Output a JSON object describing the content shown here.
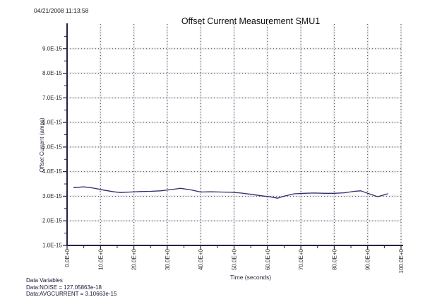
{
  "header": {
    "timestamp": "04/21/2008 11:13:58"
  },
  "chart_data": {
    "type": "line",
    "title": "Offset Current Measurement SMU1",
    "xlabel": "Time (seconds)",
    "ylabel": "Offset Current (amps)",
    "xlim": [
      0,
      100
    ],
    "ylim_e15": [
      1,
      10
    ],
    "grid": true,
    "x_tick_values": [
      0,
      10,
      20,
      30,
      40,
      50,
      60,
      70,
      80,
      90,
      100
    ],
    "x_tick_labels": [
      "0.0E+0",
      "10.0E+0",
      "20.0E+0",
      "30.0E+0",
      "40.0E+0",
      "50.0E+0",
      "60.0E+0",
      "70.0E+0",
      "80.0E+0",
      "90.0E+0",
      "100.0E+0"
    ],
    "y_tick_values": [
      1,
      2,
      3,
      4,
      5,
      6,
      7,
      8,
      9
    ],
    "y_tick_labels": [
      "1.0E-15",
      "2.0E-15",
      "3.0E-15",
      "4.0E-15",
      "5.0E-15",
      "6.0E-15",
      "7.0E-15",
      "8.0E-15",
      "9.0E-15"
    ],
    "y_scale_note": "values are amps, axis labels in units of 1E-15",
    "line_color": "#2c2c6e",
    "series": [
      {
        "name": "Offset Current SMU1",
        "x": [
          2,
          5,
          8,
          11,
          14,
          16,
          19,
          22,
          25,
          28,
          31,
          34,
          37,
          40,
          43,
          46,
          49,
          52,
          55,
          58,
          61,
          63,
          65,
          68,
          71,
          74,
          77,
          80,
          83,
          86,
          88,
          90,
          93,
          96
        ],
        "y_e15": [
          3.35,
          3.38,
          3.33,
          3.25,
          3.18,
          3.15,
          3.17,
          3.19,
          3.2,
          3.22,
          3.27,
          3.32,
          3.26,
          3.17,
          3.18,
          3.17,
          3.16,
          3.13,
          3.08,
          3.02,
          2.97,
          2.92,
          3.0,
          3.1,
          3.12,
          3.13,
          3.12,
          3.12,
          3.14,
          3.2,
          3.22,
          3.12,
          2.98,
          3.1
        ]
      }
    ]
  },
  "annotations": {
    "data_variables_header": "Data Variables",
    "noise_line": "Data:NOISE = 127.05863e-18",
    "avgcurrent_line": "Data:AVGCURRENT = 3.10663e-15"
  },
  "colors": {
    "accent_line": "#2c2c6e",
    "axis": "#23233f",
    "grid_dots": "#4a4a4a",
    "grid_halo": "#ebebf0",
    "background": "#ffffff"
  }
}
